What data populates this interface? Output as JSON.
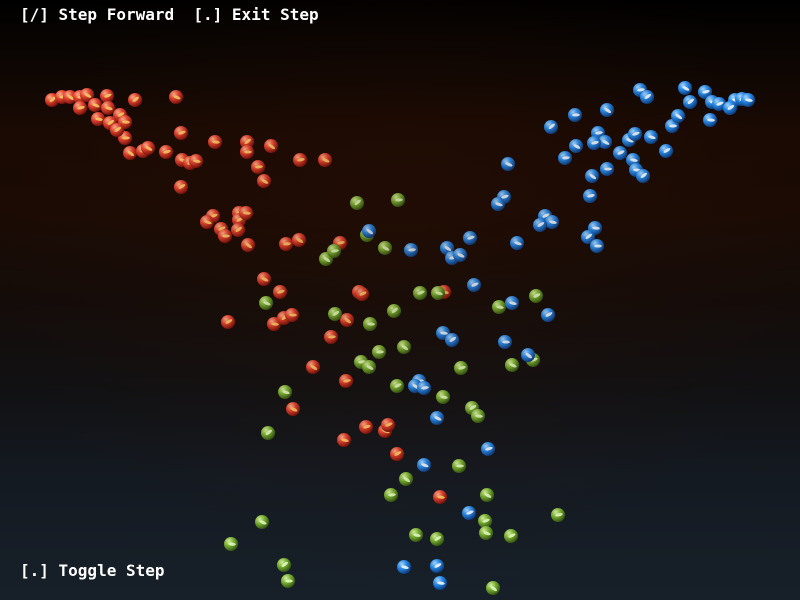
{
  "hud": {
    "top_text": "[/] Step Forward  [.] Exit Step",
    "bottom_text": "[.] Toggle Step"
  },
  "colors": {
    "red": "#d8392b",
    "green": "#6fa530",
    "blue": "#1f7fe0"
  }
}
